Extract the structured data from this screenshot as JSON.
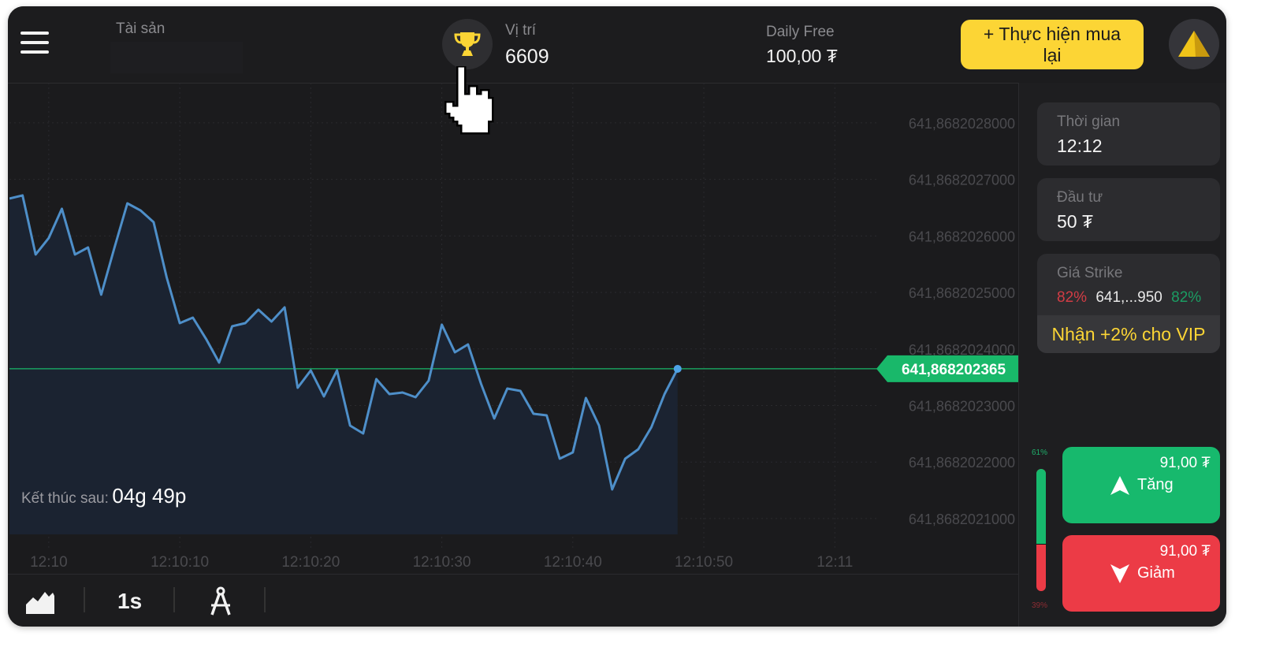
{
  "header": {
    "asset_label": "Tài sản",
    "position_label": "Vị trí",
    "position_value": "6609",
    "balance_label": "Daily Free",
    "balance_value": "100,00 ₮",
    "buy_button": "+ Thực hiện mua lại"
  },
  "colors": {
    "accent": "#fcd535",
    "up": "#17b96d",
    "down": "#ec3b46",
    "line": "#4e8fc9",
    "price": "#19b86a"
  },
  "icons": {
    "menu": "hamburger-icon",
    "trophy": "trophy-icon",
    "avatar": "gold-pyramid-icon",
    "cursor": "hand-pointer-icon",
    "chart_type": "area-chart-icon",
    "drawing": "compass-icon"
  },
  "chart_data": {
    "type": "area",
    "x_ticks": [
      "12:10",
      "12:10:10",
      "12:10:20",
      "12:10:30",
      "12:10:40",
      "12:10:50",
      "12:11"
    ],
    "y_ticks": [
      "641,8682028000",
      "641,8682027000",
      "641,8682026000",
      "641,8682025000",
      "641,8682024000",
      "641,8682023000",
      "641,8682022000",
      "641,8682021000"
    ],
    "y_tick_values": [
      641.8682028,
      641.8682027,
      641.8682026,
      641.8682025,
      641.8682024,
      641.8682023,
      641.8682022,
      641.8682021
    ],
    "xlim": [
      "12:09:57",
      "12:11:14"
    ],
    "ylim": [
      641.868202072,
      641.868202871
    ],
    "grid": true,
    "current_price_label": "641,868202365",
    "current_price": 641.868202365,
    "start_time": "12:09:57",
    "interval_seconds": 1,
    "values": [
      641.8682026661,
      641.8682026717,
      641.8682025671,
      641.8682025964,
      641.868202648,
      641.8682025671,
      641.8682025796,
      641.868202496,
      641.8682025782,
      641.8682026577,
      641.8682026452,
      641.8682026243,
      641.8682025266,
      641.8682024457,
      641.8682024555,
      641.8682024179,
      641.868202376,
      641.8682024402,
      641.8682024457,
      641.8682024695,
      641.8682024485,
      641.8682024736,
      641.8682023314,
      641.8682023621,
      641.868202316,
      641.8682023621,
      641.8682022644,
      641.8682022505,
      641.8682023467,
      641.8682023202,
      641.868202323,
      641.8682023146,
      641.8682023439,
      641.868202443,
      641.8682023941,
      641.8682024081,
      641.8682023384,
      641.868202277,
      641.86820233,
      641.8682023258,
      641.8682022854,
      641.8682022826,
      641.8682022059,
      641.868202217,
      641.8682023133,
      641.8682022644,
      641.8682021515,
      641.8682022059,
      641.8682022226,
      641.8682022616,
      641.8682023202,
      641.8682023649
    ]
  },
  "expiry": {
    "label": "Kết thúc sau:",
    "value": "04g 49p"
  },
  "toolbar": {
    "interval": "1s"
  },
  "panel": {
    "time_label": "Thời gian",
    "time_value": "12:12",
    "invest_label": "Đầu tư",
    "invest_value": "50 ₮",
    "strike_label": "Giá Strike",
    "strike_down_pct": "82%",
    "strike_value": "641,...950",
    "strike_up_pct": "82%",
    "vip": "Nhận +2% cho VIP",
    "up_pct": "61%",
    "down_pct": "39%",
    "up_share": 61,
    "up_amount": "91,00 ₮",
    "up_label": "Tăng",
    "down_amount": "91,00 ₮",
    "down_label": "Giảm"
  }
}
